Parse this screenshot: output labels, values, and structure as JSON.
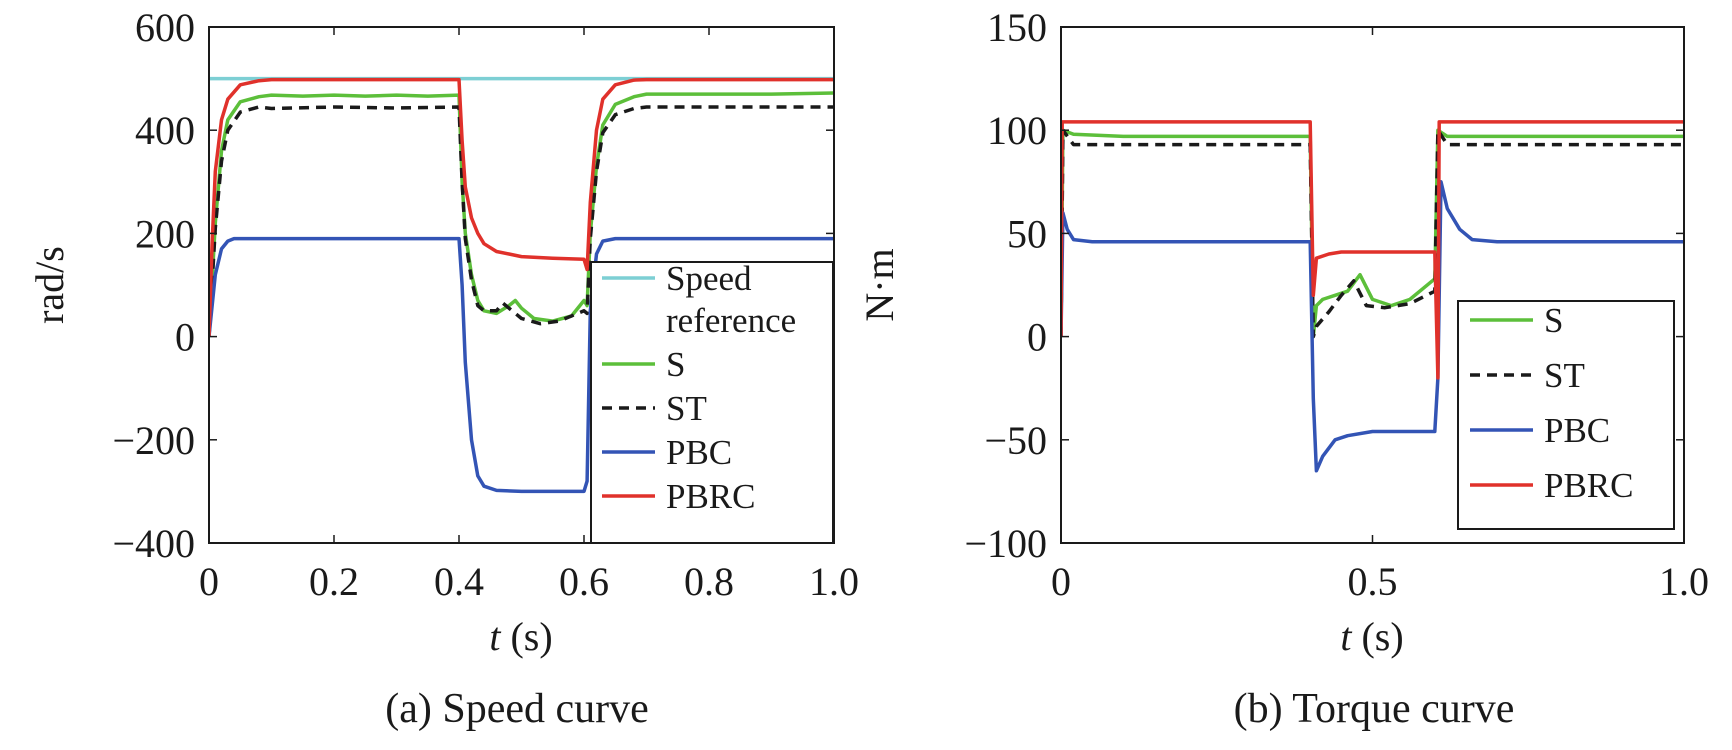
{
  "chart_data": [
    {
      "type": "line",
      "caption": "(a) Speed curve",
      "xlabel": {
        "var": "t",
        "unit": " (s)"
      },
      "ylabel": "rad/s",
      "xlim": [
        0,
        1.0
      ],
      "ylim": [
        -400,
        600
      ],
      "xticks": [
        0,
        0.2,
        0.4,
        0.6,
        0.8,
        1.0
      ],
      "xtick_labels": [
        "0",
        "0.2",
        "0.4",
        "0.6",
        "0.8",
        "1.0"
      ],
      "yticks": [
        -400,
        -200,
        0,
        200,
        400,
        600
      ],
      "ytick_labels": [
        "−400",
        "−200",
        "0",
        "200",
        "400",
        "600"
      ],
      "legend_position": "bottom-right",
      "series": [
        {
          "name": "Speed reference",
          "legend_lines": [
            "Speed",
            "reference"
          ],
          "color": "#7dcfd4",
          "dash": "solid",
          "points": [
            [
              0,
              500
            ],
            [
              1.0,
              500
            ]
          ]
        },
        {
          "name": "S",
          "legend_lines": [
            "S"
          ],
          "color": "#5cbf3a",
          "dash": "solid",
          "points": [
            [
              0,
              0
            ],
            [
              0.01,
              220
            ],
            [
              0.02,
              360
            ],
            [
              0.03,
              420
            ],
            [
              0.05,
              455
            ],
            [
              0.08,
              465
            ],
            [
              0.1,
              468
            ],
            [
              0.15,
              466
            ],
            [
              0.2,
              468
            ],
            [
              0.25,
              466
            ],
            [
              0.3,
              468
            ],
            [
              0.35,
              466
            ],
            [
              0.4,
              468
            ],
            [
              0.405,
              300
            ],
            [
              0.41,
              200
            ],
            [
              0.42,
              120
            ],
            [
              0.43,
              70
            ],
            [
              0.44,
              50
            ],
            [
              0.46,
              45
            ],
            [
              0.48,
              60
            ],
            [
              0.49,
              70
            ],
            [
              0.5,
              55
            ],
            [
              0.52,
              35
            ],
            [
              0.55,
              30
            ],
            [
              0.58,
              40
            ],
            [
              0.6,
              70
            ],
            [
              0.605,
              60
            ],
            [
              0.61,
              200
            ],
            [
              0.62,
              330
            ],
            [
              0.63,
              410
            ],
            [
              0.65,
              450
            ],
            [
              0.68,
              465
            ],
            [
              0.7,
              470
            ],
            [
              0.8,
              470
            ],
            [
              0.9,
              470
            ],
            [
              1.0,
              472
            ]
          ]
        },
        {
          "name": "ST",
          "legend_lines": [
            "ST"
          ],
          "color": "#1a1a1a",
          "dash": "dashed",
          "points": [
            [
              0,
              0
            ],
            [
              0.01,
              210
            ],
            [
              0.02,
              340
            ],
            [
              0.03,
              400
            ],
            [
              0.05,
              435
            ],
            [
              0.08,
              445
            ],
            [
              0.1,
              442
            ],
            [
              0.2,
              445
            ],
            [
              0.3,
              443
            ],
            [
              0.4,
              445
            ],
            [
              0.405,
              300
            ],
            [
              0.41,
              190
            ],
            [
              0.42,
              110
            ],
            [
              0.43,
              60
            ],
            [
              0.44,
              50
            ],
            [
              0.46,
              50
            ],
            [
              0.47,
              65
            ],
            [
              0.48,
              55
            ],
            [
              0.5,
              35
            ],
            [
              0.53,
              25
            ],
            [
              0.56,
              30
            ],
            [
              0.6,
              50
            ],
            [
              0.605,
              45
            ],
            [
              0.61,
              190
            ],
            [
              0.62,
              320
            ],
            [
              0.63,
              395
            ],
            [
              0.65,
              430
            ],
            [
              0.68,
              442
            ],
            [
              0.7,
              445
            ],
            [
              0.8,
              445
            ],
            [
              0.9,
              445
            ],
            [
              1.0,
              445
            ]
          ]
        },
        {
          "name": "PBC",
          "legend_lines": [
            "PBC"
          ],
          "color": "#3354b5",
          "dash": "solid",
          "points": [
            [
              0,
              0
            ],
            [
              0.01,
              120
            ],
            [
              0.02,
              170
            ],
            [
              0.03,
              185
            ],
            [
              0.04,
              190
            ],
            [
              0.1,
              190
            ],
            [
              0.2,
              190
            ],
            [
              0.3,
              190
            ],
            [
              0.4,
              190
            ],
            [
              0.405,
              100
            ],
            [
              0.41,
              -50
            ],
            [
              0.42,
              -200
            ],
            [
              0.43,
              -270
            ],
            [
              0.44,
              -290
            ],
            [
              0.46,
              -298
            ],
            [
              0.5,
              -300
            ],
            [
              0.55,
              -300
            ],
            [
              0.6,
              -300
            ],
            [
              0.605,
              -280
            ],
            [
              0.61,
              50
            ],
            [
              0.62,
              160
            ],
            [
              0.63,
              185
            ],
            [
              0.65,
              190
            ],
            [
              0.7,
              190
            ],
            [
              0.8,
              190
            ],
            [
              0.9,
              190
            ],
            [
              1.0,
              190
            ]
          ]
        },
        {
          "name": "PBRC",
          "legend_lines": [
            "PBRC"
          ],
          "color": "#e0312b",
          "dash": "solid",
          "points": [
            [
              0,
              0
            ],
            [
              0.005,
              180
            ],
            [
              0.01,
              320
            ],
            [
              0.02,
              420
            ],
            [
              0.03,
              460
            ],
            [
              0.05,
              488
            ],
            [
              0.08,
              496
            ],
            [
              0.1,
              498
            ],
            [
              0.2,
              498
            ],
            [
              0.3,
              498
            ],
            [
              0.4,
              498
            ],
            [
              0.405,
              380
            ],
            [
              0.41,
              290
            ],
            [
              0.42,
              230
            ],
            [
              0.43,
              200
            ],
            [
              0.44,
              180
            ],
            [
              0.46,
              165
            ],
            [
              0.48,
              160
            ],
            [
              0.5,
              155
            ],
            [
              0.55,
              152
            ],
            [
              0.6,
              150
            ],
            [
              0.605,
              130
            ],
            [
              0.61,
              260
            ],
            [
              0.62,
              400
            ],
            [
              0.63,
              460
            ],
            [
              0.65,
              488
            ],
            [
              0.68,
              497
            ],
            [
              0.7,
              498
            ],
            [
              0.8,
              498
            ],
            [
              0.9,
              498
            ],
            [
              1.0,
              498
            ]
          ]
        }
      ]
    },
    {
      "type": "line",
      "caption": "(b) Torque curve",
      "xlabel": {
        "var": "t",
        "unit": " (s)"
      },
      "ylabel": "N·m",
      "xlim": [
        0,
        1.0
      ],
      "ylim": [
        -100,
        150
      ],
      "xticks": [
        0,
        0.5,
        1.0
      ],
      "xtick_labels": [
        "0",
        "0.5",
        "1.0"
      ],
      "yticks": [
        -100,
        -50,
        0,
        50,
        100,
        150
      ],
      "ytick_labels": [
        "−100",
        "−50",
        "0",
        "50",
        "100",
        "150"
      ],
      "legend_position": "right",
      "series": [
        {
          "name": "S",
          "legend_lines": [
            "S"
          ],
          "color": "#5cbf3a",
          "dash": "solid",
          "points": [
            [
              0,
              0
            ],
            [
              0.003,
              100
            ],
            [
              0.02,
              98
            ],
            [
              0.1,
              97
            ],
            [
              0.2,
              97
            ],
            [
              0.3,
              97
            ],
            [
              0.4,
              97
            ],
            [
              0.405,
              0
            ],
            [
              0.41,
              15
            ],
            [
              0.42,
              18
            ],
            [
              0.44,
              20
            ],
            [
              0.46,
              22
            ],
            [
              0.48,
              30
            ],
            [
              0.5,
              18
            ],
            [
              0.53,
              15
            ],
            [
              0.56,
              18
            ],
            [
              0.6,
              28
            ],
            [
              0.605,
              100
            ],
            [
              0.62,
              97
            ],
            [
              0.7,
              97
            ],
            [
              0.8,
              97
            ],
            [
              0.9,
              97
            ],
            [
              1.0,
              97
            ]
          ]
        },
        {
          "name": "ST",
          "legend_lines": [
            "ST"
          ],
          "color": "#1a1a1a",
          "dash": "dashed",
          "points": [
            [
              0,
              0
            ],
            [
              0.003,
              100
            ],
            [
              0.02,
              93
            ],
            [
              0.1,
              93
            ],
            [
              0.2,
              93
            ],
            [
              0.3,
              93
            ],
            [
              0.4,
              93
            ],
            [
              0.405,
              0
            ],
            [
              0.41,
              5
            ],
            [
              0.43,
              12
            ],
            [
              0.45,
              20
            ],
            [
              0.47,
              27
            ],
            [
              0.49,
              15
            ],
            [
              0.52,
              14
            ],
            [
              0.56,
              16
            ],
            [
              0.6,
              22
            ],
            [
              0.605,
              100
            ],
            [
              0.62,
              93
            ],
            [
              0.7,
              93
            ],
            [
              0.8,
              93
            ],
            [
              0.9,
              93
            ],
            [
              1.0,
              93
            ]
          ]
        },
        {
          "name": "PBC",
          "legend_lines": [
            "PBC"
          ],
          "color": "#3354b5",
          "dash": "solid",
          "points": [
            [
              0,
              0
            ],
            [
              0.003,
              60
            ],
            [
              0.01,
              52
            ],
            [
              0.02,
              47
            ],
            [
              0.05,
              46
            ],
            [
              0.1,
              46
            ],
            [
              0.2,
              46
            ],
            [
              0.3,
              46
            ],
            [
              0.4,
              46
            ],
            [
              0.405,
              -30
            ],
            [
              0.41,
              -65
            ],
            [
              0.42,
              -58
            ],
            [
              0.44,
              -50
            ],
            [
              0.46,
              -48
            ],
            [
              0.5,
              -46
            ],
            [
              0.55,
              -46
            ],
            [
              0.6,
              -46
            ],
            [
              0.605,
              -20
            ],
            [
              0.61,
              75
            ],
            [
              0.62,
              62
            ],
            [
              0.64,
              52
            ],
            [
              0.66,
              47
            ],
            [
              0.7,
              46
            ],
            [
              0.8,
              46
            ],
            [
              0.9,
              46
            ],
            [
              1.0,
              46
            ]
          ]
        },
        {
          "name": "PBRC",
          "legend_lines": [
            "PBRC"
          ],
          "color": "#e0312b",
          "dash": "solid",
          "points": [
            [
              0,
              0
            ],
            [
              0.002,
              104
            ],
            [
              0.1,
              104
            ],
            [
              0.2,
              104
            ],
            [
              0.3,
              104
            ],
            [
              0.4,
              104
            ],
            [
              0.405,
              20
            ],
            [
              0.41,
              38
            ],
            [
              0.43,
              40
            ],
            [
              0.45,
              41
            ],
            [
              0.5,
              41
            ],
            [
              0.55,
              41
            ],
            [
              0.6,
              41
            ],
            [
              0.605,
              -20
            ],
            [
              0.607,
              104
            ],
            [
              0.7,
              104
            ],
            [
              0.8,
              104
            ],
            [
              0.9,
              104
            ],
            [
              1.0,
              104
            ]
          ]
        }
      ]
    }
  ]
}
